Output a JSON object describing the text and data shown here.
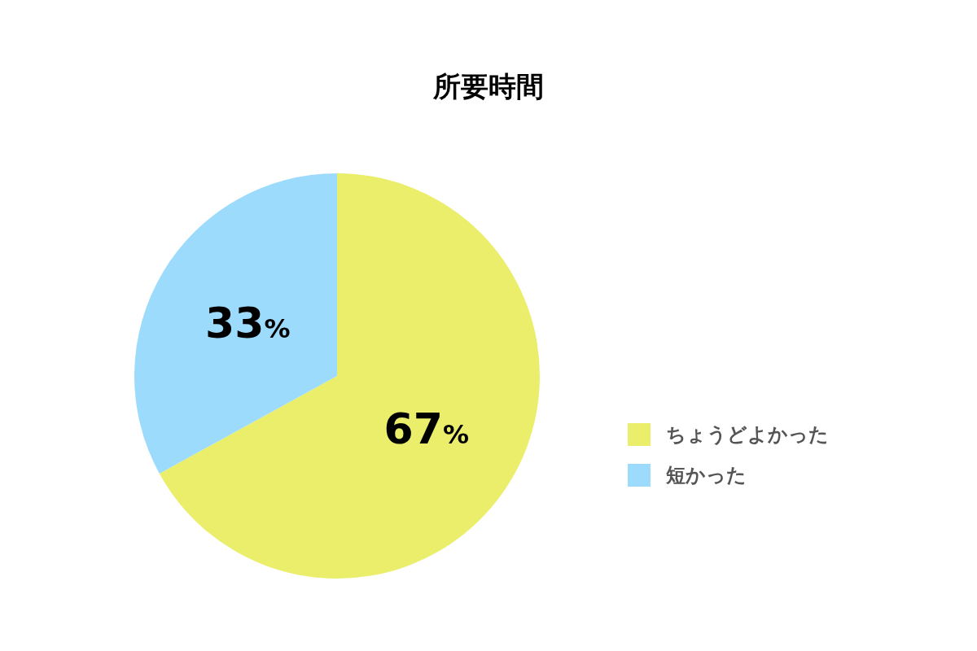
{
  "chart_data": {
    "type": "pie",
    "title": "所要時間",
    "categories": [
      "ちょうどよかった",
      "短かった"
    ],
    "values": [
      67,
      33
    ],
    "colors": [
      "#eaee6b",
      "#9ddbfd"
    ],
    "value_labels": [
      "67%",
      "33%"
    ],
    "legend": "right"
  }
}
